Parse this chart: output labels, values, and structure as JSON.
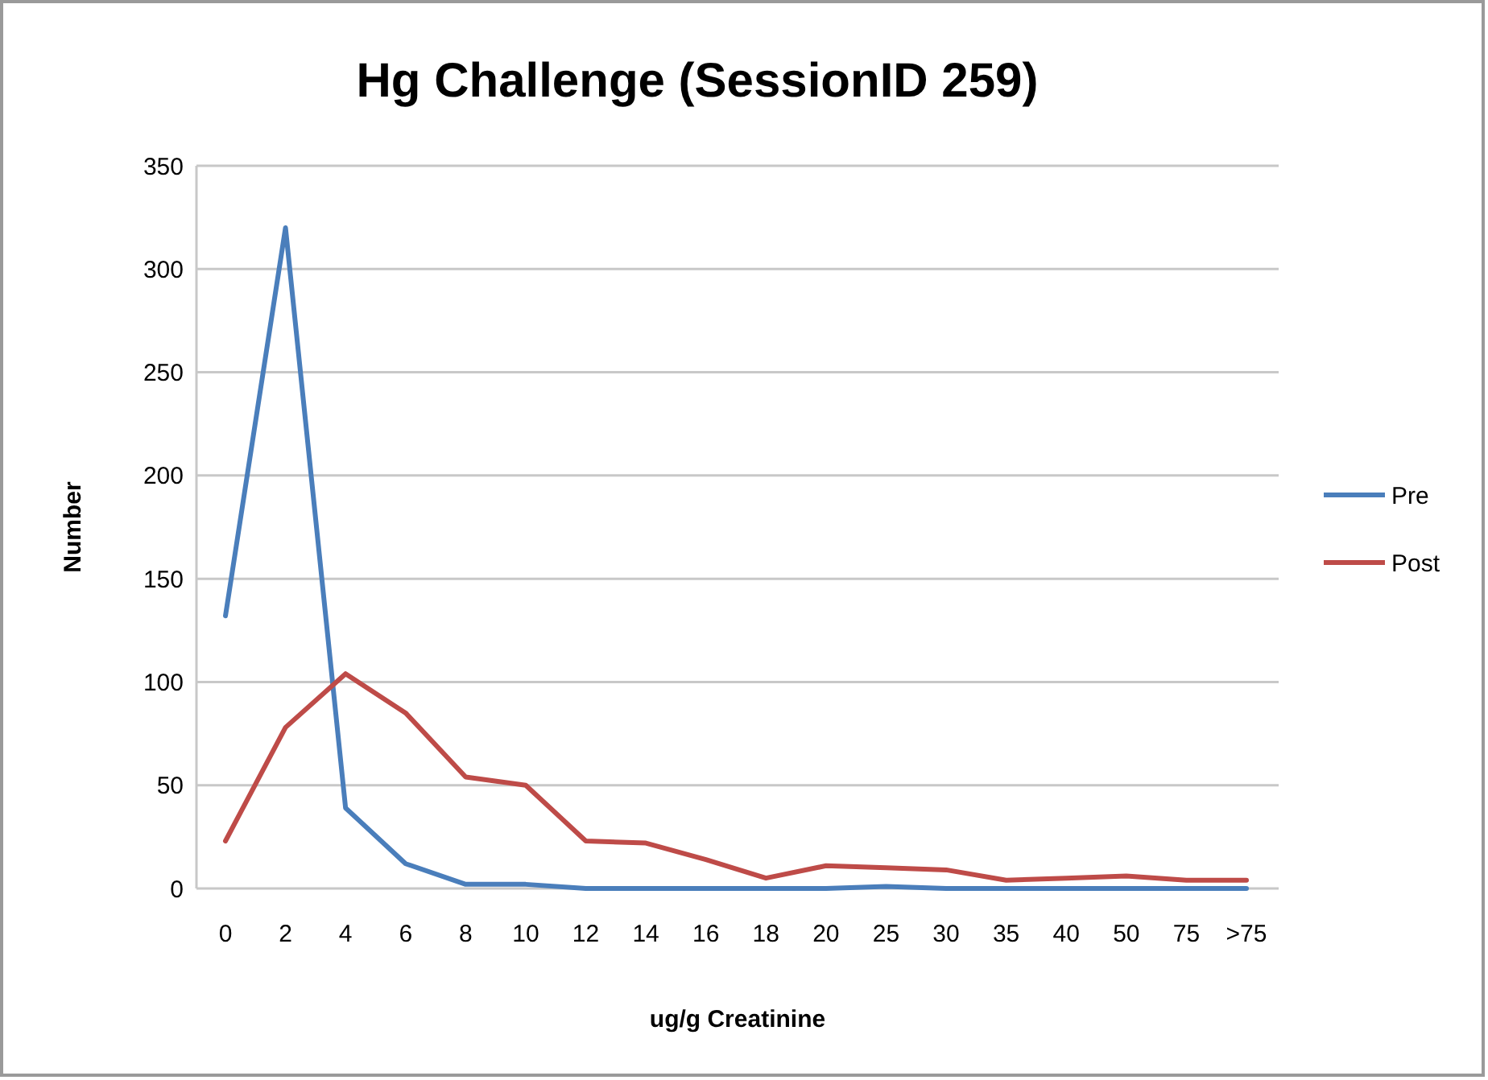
{
  "chart_data": {
    "type": "line",
    "title": "Hg Challenge (SessionID 259)",
    "xlabel": "ug/g Creatinine",
    "ylabel": "Number",
    "categories": [
      "0",
      "2",
      "4",
      "6",
      "8",
      "10",
      "12",
      "14",
      "16",
      "18",
      "20",
      "25",
      "30",
      "35",
      "40",
      "50",
      "75",
      ">75"
    ],
    "series": [
      {
        "name": "Pre",
        "color": "#4a7ebb",
        "values": [
          132,
          320,
          39,
          12,
          2,
          2,
          0,
          0,
          0,
          0,
          0,
          1,
          0,
          0,
          0,
          0,
          0,
          0
        ]
      },
      {
        "name": "Post",
        "color": "#be4b48",
        "values": [
          23,
          78,
          104,
          85,
          54,
          50,
          23,
          22,
          14,
          5,
          11,
          10,
          9,
          4,
          5,
          6,
          4,
          4
        ]
      }
    ],
    "ylim": [
      0,
      350
    ],
    "yticks": [
      0,
      50,
      100,
      150,
      200,
      250,
      300,
      350
    ],
    "grid": "y",
    "legend": "right",
    "marker": "none",
    "line_style": "solid"
  }
}
